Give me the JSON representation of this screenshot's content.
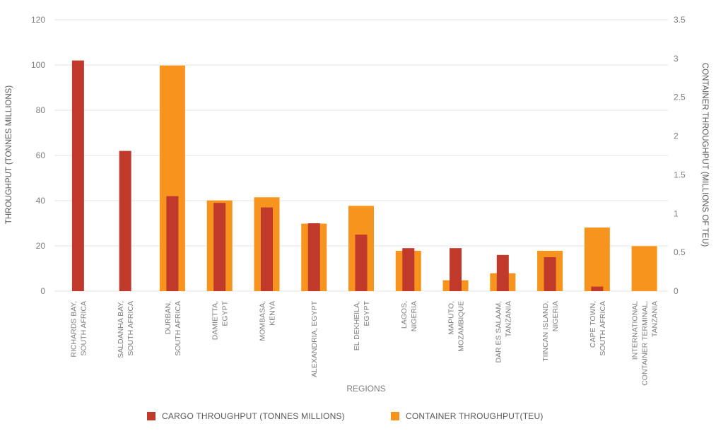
{
  "chart_data": {
    "type": "bar",
    "xlabel": "REGIONS",
    "ylabel": "THROUGHPUT (TONNES MILLIONS)",
    "y2label": "CONTAINER THROUGHPUT (MILLIONS OF TEU)",
    "ylim": [
      0,
      120
    ],
    "y2lim": [
      0,
      3.5
    ],
    "yticks": [
      "0",
      "20",
      "40",
      "60",
      "80",
      "100",
      "120"
    ],
    "y2ticks": [
      "0",
      "0.5",
      "1",
      "1.5",
      "2",
      "2.5",
      "3",
      "3.5"
    ],
    "grid": true,
    "legend_position": "bottom",
    "categories": [
      [
        "RICHARDS BAY,",
        "SOUTH AFRICA"
      ],
      [
        "SALDANHA BAY,",
        "SOUTH AFRICA"
      ],
      [
        "DURBAN,",
        "SOUTH AFRICA"
      ],
      [
        "DAMIETTA,",
        "EGYPT"
      ],
      [
        "MOMBASA,",
        "KENYA"
      ],
      [
        "ALEXANDRIA, EGYPT"
      ],
      [
        "EL DEKHEILA,",
        "EGYPT"
      ],
      [
        "LAGOS,",
        "NIGERIA"
      ],
      [
        "MAPUTO,",
        "MOZAMBIQUE"
      ],
      [
        "DAR ES SALAAM,",
        "TANZANIA"
      ],
      [
        "TIINCAN ISLAND,",
        "NIGERIA"
      ],
      [
        "CAPE TOWN,",
        "SOUTH AFRICA"
      ],
      [
        "INTERNATIONAL",
        "CONTAINER TERMINAL,",
        "TANZANIA"
      ]
    ],
    "series": [
      {
        "name": "CARGO THROUGHPUT (TONNES MILLIONS)",
        "axis": "left",
        "color": "#c0392b",
        "values": [
          102,
          62,
          42,
          39,
          37,
          30,
          25,
          19,
          19,
          16,
          15,
          2,
          null
        ]
      },
      {
        "name": "CONTAINER THROUGHPUT(TEU)",
        "axis": "right",
        "color": "#f7941d",
        "values": [
          null,
          null,
          2.91,
          1.17,
          1.21,
          0.87,
          1.1,
          0.52,
          0.14,
          0.23,
          0.52,
          0.82,
          0.58
        ]
      }
    ]
  }
}
